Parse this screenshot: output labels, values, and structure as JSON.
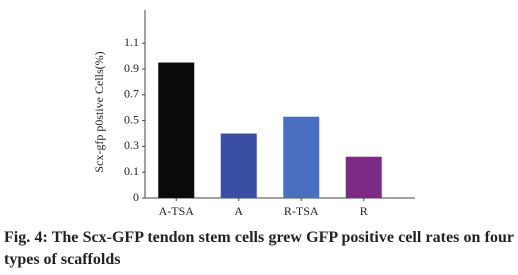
{
  "chart_data": {
    "type": "bar",
    "y_label": "Scx-gfp p0stive Cells(%)",
    "categories": [
      "A-TSA",
      "A",
      "R-TSA",
      "R"
    ],
    "values": [
      0.95,
      0.4,
      0.53,
      0.22
    ],
    "colors": [
      "#0b0b0b",
      "#3a4fa3",
      "#4a6fc2",
      "#7b2b84"
    ],
    "ylim": [
      0,
      1.35
    ],
    "yticks": [
      0,
      0.1,
      0.3,
      0.5,
      0.7,
      0.9,
      1.1
    ],
    "grid": false
  },
  "caption": "Fig. 4: The Scx-GFP tendon stem cells grew GFP positive cell rates on four types of scaffolds"
}
